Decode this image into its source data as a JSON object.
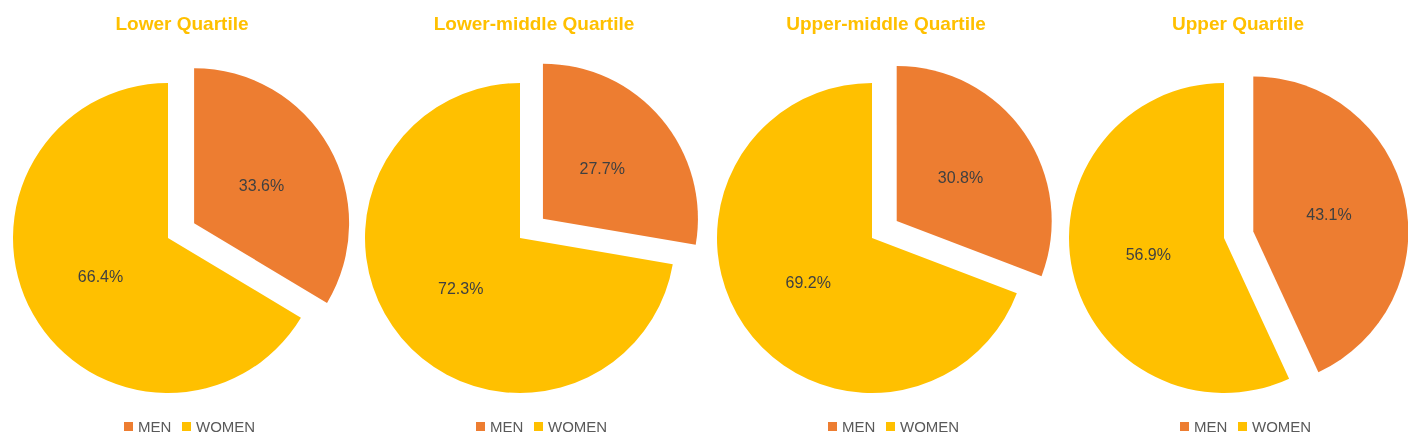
{
  "chart_data": [
    {
      "type": "pie",
      "title": "Lower Quartile",
      "categories": [
        "MEN",
        "WOMEN"
      ],
      "values": [
        33.6,
        66.4
      ],
      "colors": [
        "#ed7d31",
        "#ffc000"
      ],
      "value_labels": [
        "33.6%",
        "66.4%"
      ],
      "legend": "bottom"
    },
    {
      "type": "pie",
      "title": "Lower-middle Quartile",
      "categories": [
        "MEN",
        "WOMEN"
      ],
      "values": [
        27.7,
        72.3
      ],
      "colors": [
        "#ed7d31",
        "#ffc000"
      ],
      "value_labels": [
        "27.7%",
        "72.3%"
      ],
      "legend": "bottom"
    },
    {
      "type": "pie",
      "title": "Upper-middle Quartile",
      "categories": [
        "MEN",
        "WOMEN"
      ],
      "values": [
        30.8,
        69.2
      ],
      "colors": [
        "#ed7d31",
        "#ffc000"
      ],
      "value_labels": [
        "30.8%",
        "69.2%"
      ],
      "legend": "bottom"
    },
    {
      "type": "pie",
      "title": "Upper Quartile",
      "categories": [
        "MEN",
        "WOMEN"
      ],
      "values": [
        43.1,
        56.9
      ],
      "colors": [
        "#ed7d31",
        "#ffc000"
      ],
      "value_labels": [
        "43.1%",
        "56.9%"
      ],
      "legend": "bottom"
    }
  ]
}
